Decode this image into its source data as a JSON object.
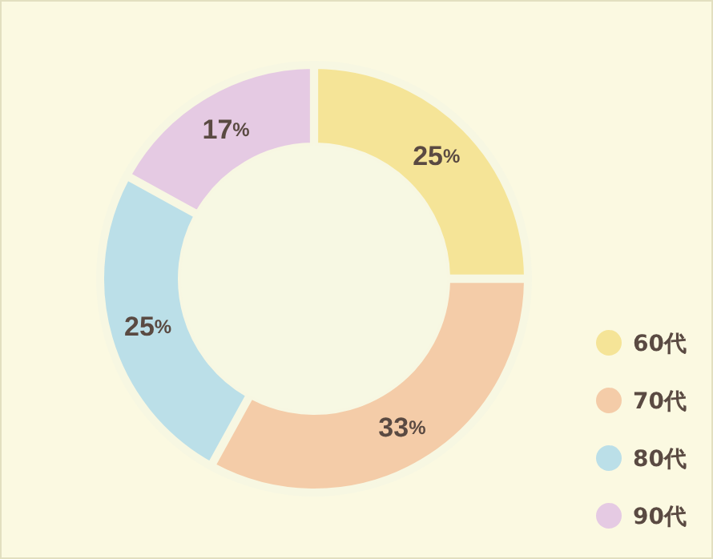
{
  "chart_data": {
    "type": "donut",
    "categories": [
      "60代",
      "70代",
      "80代",
      "90代"
    ],
    "values": [
      25,
      33,
      25,
      17
    ],
    "colors": [
      "#f5e497",
      "#f4cca8",
      "#bbdfe8",
      "#e5cae3"
    ],
    "value_labels": [
      "25%",
      "33%",
      "25%",
      "17%"
    ],
    "legend": "bottom right"
  }
}
